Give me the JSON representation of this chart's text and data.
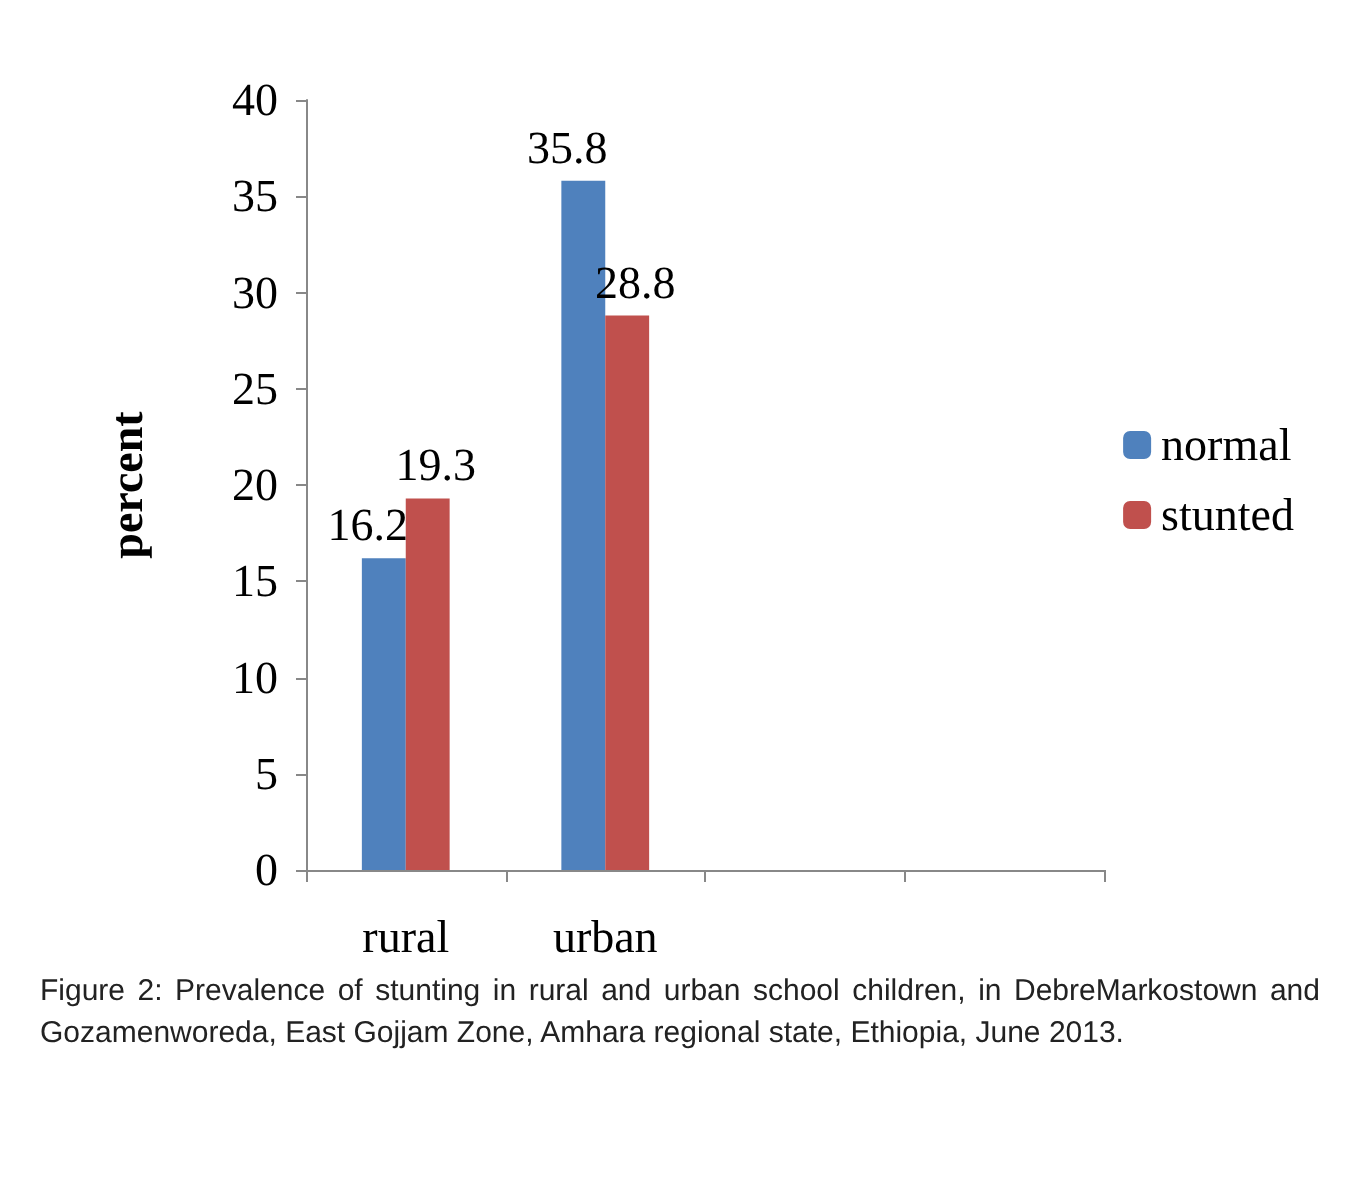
{
  "chart_data": {
    "type": "bar",
    "ylabel": "percent",
    "categories": [
      "rural",
      "urban",
      null,
      null
    ],
    "series": [
      {
        "name": "normal",
        "color": "#4f81bd",
        "values": [
          16.2,
          35.8,
          null,
          null
        ]
      },
      {
        "name": "stunted",
        "color": "#c0504d",
        "values": [
          19.3,
          28.8,
          null,
          null
        ]
      }
    ],
    "ylim": [
      0,
      40
    ],
    "yticks": [
      0,
      5,
      10,
      15,
      20,
      25,
      30,
      35,
      40
    ],
    "grid": false,
    "legend": "right",
    "data_labels": true,
    "annotations": [
      "Figure 2: Prevalence of stunting in rural and urban school children, in DebreMarkostown and Gozamenworeda, East Gojjam Zone, Amhara regional state, Ethiopia, June 2013."
    ]
  }
}
